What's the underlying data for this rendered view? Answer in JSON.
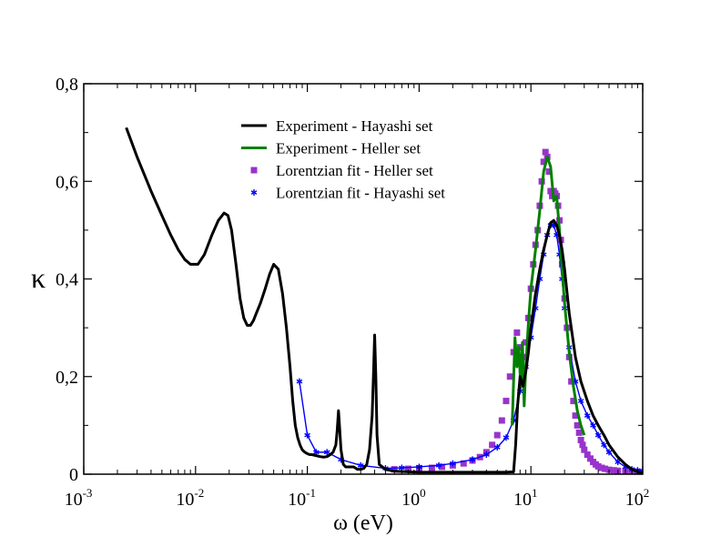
{
  "chart_data": {
    "type": "line",
    "title": "",
    "xlabel": "ω (eV)",
    "ylabel": "κ",
    "xscale": "log",
    "xlim": [
      0.001,
      100
    ],
    "ylim": [
      0,
      0.8
    ],
    "x_ticks": [
      {
        "value": 0.001,
        "base": "10",
        "exp": "-3"
      },
      {
        "value": 0.01,
        "base": "10",
        "exp": "-2"
      },
      {
        "value": 0.1,
        "base": "10",
        "exp": "-1"
      },
      {
        "value": 1,
        "base": "10",
        "exp": "0"
      },
      {
        "value": 10,
        "base": "10",
        "exp": "1"
      },
      {
        "value": 100,
        "base": "10",
        "exp": "2"
      }
    ],
    "y_ticks": [
      {
        "value": 0,
        "label": "0"
      },
      {
        "value": 0.2,
        "label": "0,2"
      },
      {
        "value": 0.4,
        "label": "0,4"
      },
      {
        "value": 0.6,
        "label": "0,6"
      },
      {
        "value": 0.8,
        "label": "0,8"
      }
    ],
    "grid": false,
    "legend_position": "top-center",
    "series": [
      {
        "name": "Experiment - Hayashi set",
        "style": "line",
        "color": "#000000",
        "x": [
          0.0024,
          0.003,
          0.004,
          0.005,
          0.006,
          0.007,
          0.008,
          0.009,
          0.0105,
          0.012,
          0.014,
          0.016,
          0.018,
          0.0195,
          0.021,
          0.023,
          0.025,
          0.027,
          0.029,
          0.031,
          0.033,
          0.035,
          0.038,
          0.042,
          0.046,
          0.05,
          0.055,
          0.06,
          0.065,
          0.07,
          0.074,
          0.078,
          0.082,
          0.086,
          0.09,
          0.095,
          0.1,
          0.105,
          0.11,
          0.12,
          0.13,
          0.14,
          0.15,
          0.16,
          0.17,
          0.18,
          0.185,
          0.19,
          0.195,
          0.2,
          0.21,
          0.22,
          0.24,
          0.26,
          0.28,
          0.3,
          0.32,
          0.34,
          0.36,
          0.38,
          0.39,
          0.4,
          0.41,
          0.42,
          0.44,
          0.5,
          0.6,
          0.8,
          1,
          2,
          4,
          6,
          7,
          7.3,
          7.6,
          8,
          8.5,
          9,
          9.5,
          10,
          11,
          12,
          13,
          14,
          15,
          16,
          17,
          18,
          19,
          20,
          22,
          25,
          28,
          32,
          36,
          40,
          45,
          50,
          60,
          70,
          80,
          90,
          100
        ],
        "y": [
          0.71,
          0.65,
          0.58,
          0.53,
          0.49,
          0.46,
          0.44,
          0.43,
          0.43,
          0.45,
          0.49,
          0.52,
          0.535,
          0.53,
          0.5,
          0.43,
          0.36,
          0.32,
          0.305,
          0.305,
          0.315,
          0.33,
          0.35,
          0.38,
          0.41,
          0.43,
          0.42,
          0.37,
          0.3,
          0.22,
          0.15,
          0.1,
          0.075,
          0.06,
          0.05,
          0.045,
          0.042,
          0.04,
          0.04,
          0.038,
          0.036,
          0.035,
          0.036,
          0.04,
          0.045,
          0.06,
          0.09,
          0.13,
          0.09,
          0.05,
          0.02,
          0.015,
          0.015,
          0.015,
          0.01,
          0.01,
          0.012,
          0.02,
          0.05,
          0.12,
          0.2,
          0.285,
          0.2,
          0.08,
          0.02,
          0.01,
          0.006,
          0.005,
          0.004,
          0.004,
          0.004,
          0.004,
          0.005,
          0.06,
          0.14,
          0.2,
          0.18,
          0.21,
          0.25,
          0.3,
          0.37,
          0.42,
          0.46,
          0.49,
          0.515,
          0.52,
          0.51,
          0.49,
          0.46,
          0.42,
          0.33,
          0.24,
          0.19,
          0.15,
          0.12,
          0.1,
          0.08,
          0.06,
          0.035,
          0.02,
          0.01,
          0.005,
          0.002
        ]
      },
      {
        "name": "Experiment - Heller set",
        "style": "line",
        "color": "#008000",
        "x": [
          6.8,
          7.2,
          7.5,
          7.8,
          8.1,
          8.4,
          8.7,
          9,
          9.5,
          10,
          11,
          12,
          13,
          14,
          15,
          16,
          17,
          18,
          19,
          20,
          22,
          24,
          26,
          28,
          30
        ],
        "y": [
          0.1,
          0.28,
          0.22,
          0.26,
          0.18,
          0.27,
          0.14,
          0.22,
          0.31,
          0.38,
          0.46,
          0.54,
          0.62,
          0.65,
          0.63,
          0.56,
          0.57,
          0.5,
          0.42,
          0.35,
          0.25,
          0.18,
          0.13,
          0.1,
          0.08
        ]
      },
      {
        "name": "Lorentzian fit - Heller set",
        "style": "markers",
        "marker": "square",
        "color": "#9933CC",
        "x": [
          0.6,
          0.8,
          1,
          1.3,
          1.6,
          2,
          2.5,
          3,
          3.5,
          4,
          4.5,
          5,
          5.5,
          6,
          6.5,
          7,
          7.5,
          8,
          8.5,
          9,
          9.5,
          10,
          10.5,
          11,
          11.5,
          12,
          12.5,
          13,
          13.5,
          14,
          14.5,
          15,
          15.5,
          16,
          16.5,
          17,
          17.5,
          18,
          18.5,
          19,
          20,
          21,
          22,
          23,
          24,
          25,
          26,
          27,
          28,
          29,
          30,
          32,
          34,
          36,
          38,
          40,
          43,
          46,
          50,
          55,
          60,
          70,
          80,
          90,
          100
        ],
        "y": [
          0.01,
          0.011,
          0.012,
          0.013,
          0.015,
          0.018,
          0.022,
          0.028,
          0.035,
          0.045,
          0.06,
          0.08,
          0.11,
          0.15,
          0.2,
          0.25,
          0.29,
          0.26,
          0.24,
          0.27,
          0.32,
          0.38,
          0.43,
          0.47,
          0.5,
          0.55,
          0.6,
          0.64,
          0.66,
          0.65,
          0.62,
          0.58,
          0.57,
          0.58,
          0.575,
          0.57,
          0.55,
          0.52,
          0.48,
          0.43,
          0.36,
          0.3,
          0.24,
          0.19,
          0.15,
          0.12,
          0.1,
          0.085,
          0.07,
          0.06,
          0.05,
          0.04,
          0.032,
          0.025,
          0.02,
          0.016,
          0.013,
          0.011,
          0.009,
          0.008,
          0.007,
          0.006,
          0.005,
          0.005,
          0.004
        ]
      },
      {
        "name": "Lorentzian fit - Hayashi set",
        "style": "line+markers",
        "marker": "star",
        "color": "#0000FF",
        "x": [
          0.085,
          0.1,
          0.12,
          0.15,
          0.2,
          0.3,
          0.5,
          0.7,
          1,
          1.5,
          2,
          3,
          4,
          5,
          6,
          7,
          8,
          9,
          10,
          11,
          12,
          13,
          14,
          15,
          16,
          17,
          18,
          19,
          20,
          22,
          25,
          28,
          32,
          36,
          40,
          45,
          50,
          60,
          70,
          80,
          90,
          100
        ],
        "y": [
          0.19,
          0.08,
          0.045,
          0.045,
          0.03,
          0.018,
          0.012,
          0.013,
          0.015,
          0.018,
          0.022,
          0.03,
          0.04,
          0.055,
          0.075,
          0.11,
          0.17,
          0.22,
          0.28,
          0.34,
          0.4,
          0.45,
          0.49,
          0.51,
          0.51,
          0.49,
          0.45,
          0.4,
          0.34,
          0.26,
          0.19,
          0.15,
          0.12,
          0.1,
          0.08,
          0.06,
          0.045,
          0.025,
          0.015,
          0.01,
          0.008,
          0.006
        ]
      }
    ]
  }
}
